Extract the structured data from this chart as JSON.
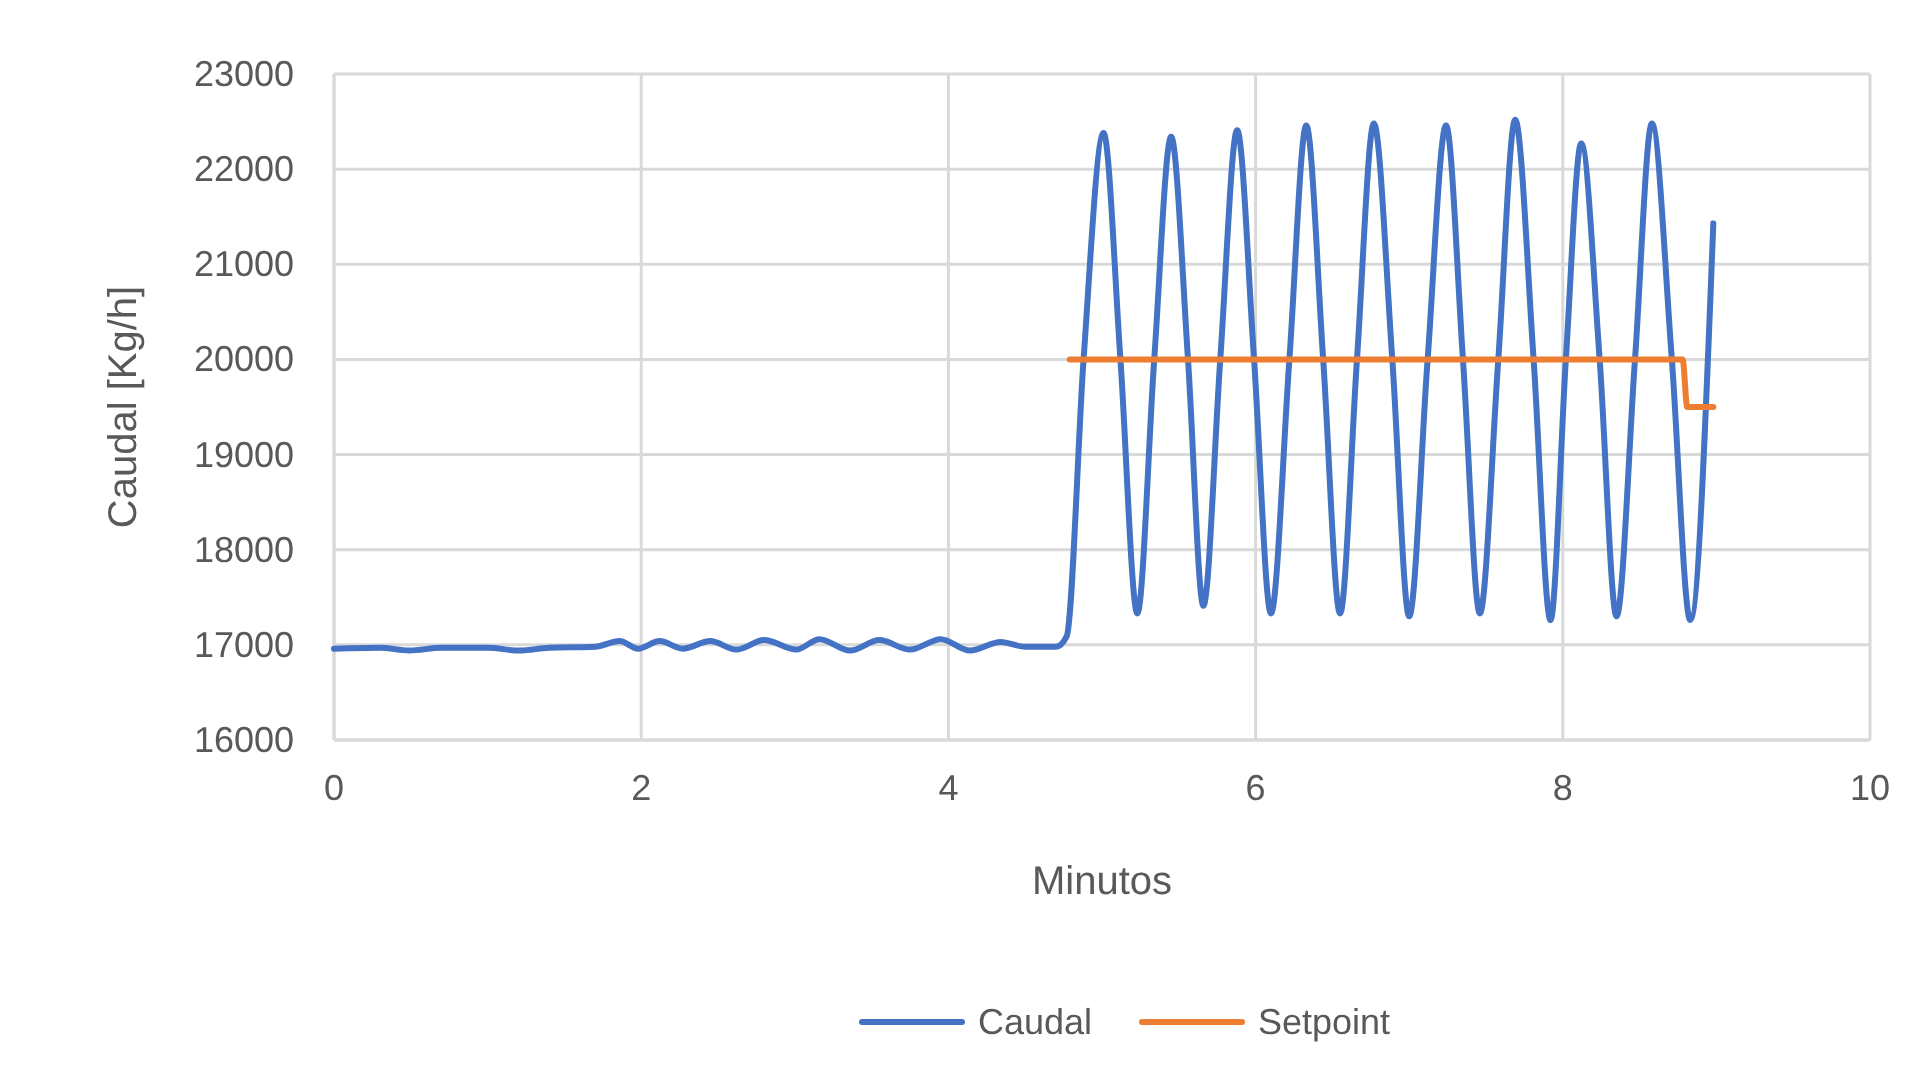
{
  "chart_data": {
    "type": "line",
    "xlabel": "Minutos",
    "ylabel": "Caudal [Kg/h]",
    "xlim": [
      0,
      10
    ],
    "xticks": [
      0,
      2,
      4,
      6,
      8,
      10
    ],
    "ylim": [
      16000,
      23000
    ],
    "yticks": [
      16000,
      17000,
      18000,
      19000,
      20000,
      21000,
      22000,
      23000
    ],
    "grid": true,
    "legend": "bottom",
    "marker": "none",
    "line_style": "solid",
    "series": [
      {
        "name": "Caudal",
        "color": "#4472c4",
        "x": [
          0,
          0.3,
          0.49,
          0.7,
          1.0,
          1.21,
          1.4,
          1.7,
          1.86,
          1.98,
          2.12,
          2.27,
          2.45,
          2.62,
          2.8,
          3.01,
          3.16,
          3.36,
          3.55,
          3.75,
          3.95,
          4.14,
          4.34,
          4.5,
          4.7,
          4.77,
          4.88,
          5.01,
          5.12,
          5.23,
          5.34,
          5.45,
          5.56,
          5.66,
          5.77,
          5.88,
          5.99,
          6.1,
          6.22,
          6.33,
          6.44,
          6.55,
          6.66,
          6.77,
          6.89,
          7.0,
          7.12,
          7.24,
          7.35,
          7.46,
          7.58,
          7.69,
          7.81,
          7.92,
          8.02,
          8.12,
          8.24,
          8.35,
          8.47,
          8.58,
          8.71,
          8.83,
          8.98
        ],
        "values": [
          16960,
          16970,
          16940,
          16970,
          16970,
          16940,
          16970,
          16980,
          17040,
          16960,
          17040,
          16960,
          17040,
          16950,
          17050,
          16950,
          17060,
          16940,
          17050,
          16950,
          17060,
          16940,
          17030,
          16980,
          16980,
          17090,
          20000,
          22380,
          20000,
          17330,
          20000,
          22340,
          20000,
          17410,
          20000,
          22410,
          20000,
          17330,
          20000,
          22460,
          20000,
          17330,
          20000,
          22480,
          20000,
          17300,
          20000,
          22460,
          20000,
          17330,
          20000,
          22520,
          20000,
          17260,
          20000,
          22270,
          20000,
          17300,
          20000,
          22480,
          20000,
          17260,
          21430
        ]
      },
      {
        "name": "Setpoint",
        "color": "#ed7d31",
        "x": [
          4.79,
          8.78,
          8.81,
          8.98
        ],
        "values": [
          20000,
          20000,
          19500,
          19500
        ]
      }
    ]
  }
}
